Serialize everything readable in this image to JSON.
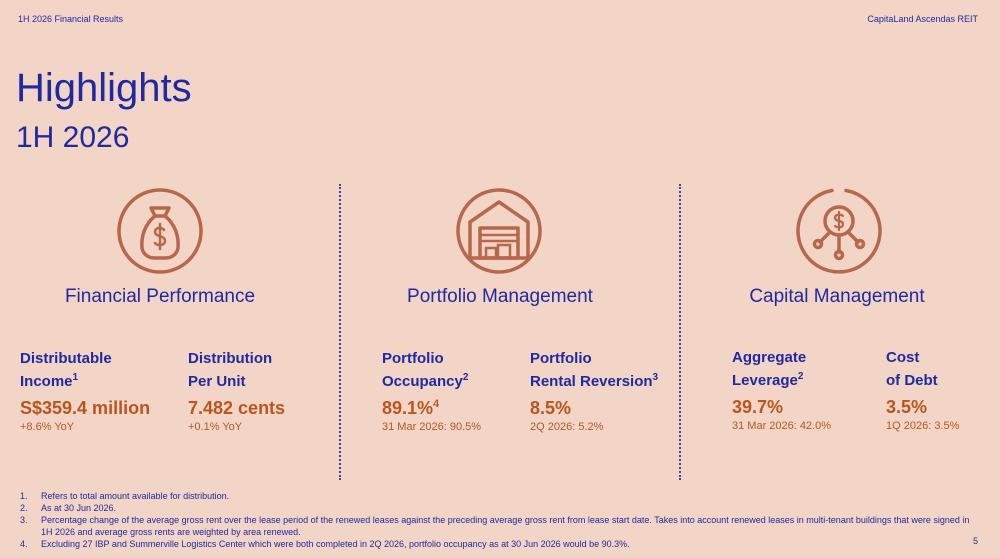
{
  "header": {
    "left": "1H 2026 Financial Results",
    "right": "CapitaLand Ascendas REIT"
  },
  "title": "Highlights",
  "subtitle": "1H 2026",
  "accent_colors": {
    "title": "#1f2aa0",
    "value": "#b8561e",
    "icon": "#b8674a",
    "background": "#f2d5c6"
  },
  "sections": [
    {
      "icon": "money-bag-icon",
      "title": "Financial Performance",
      "metrics": [
        {
          "label_line1": "Distributable",
          "label_line2": "Income",
          "sup": "1",
          "value": "S$359.4 million",
          "value_sup": "",
          "note": "+8.6% YoY"
        },
        {
          "label_line1": "Distribution",
          "label_line2": "Per Unit",
          "sup": "",
          "value": "7.482 cents",
          "value_sup": "",
          "note": "+0.1% YoY"
        }
      ]
    },
    {
      "icon": "warehouse-icon",
      "title": "Portfolio Management",
      "metrics": [
        {
          "label_line1": "Portfolio",
          "label_line2": "Occupancy",
          "sup": "2",
          "value": "89.1%",
          "value_sup": "4",
          "note": "31 Mar 2026: 90.5%"
        },
        {
          "label_line1": "Portfolio",
          "label_line2": "Rental Reversion",
          "sup": "3",
          "value": "8.5%",
          "value_sup": "",
          "note": "2Q 2026: 5.2%"
        }
      ]
    },
    {
      "icon": "capital-network-icon",
      "title": "Capital Management",
      "metrics": [
        {
          "label_line1": "Aggregate",
          "label_line2": "Leverage",
          "sup": "2",
          "value": "39.7%",
          "value_sup": "",
          "note": "31 Mar 2026: 42.0%"
        },
        {
          "label_line1": "Cost",
          "label_line2": "of Debt",
          "sup": "",
          "value": "3.5%",
          "value_sup": "",
          "note": "1Q 2026: 3.5%"
        }
      ]
    }
  ],
  "footnotes": [
    {
      "num": "1.",
      "text": "Refers to total amount available for distribution."
    },
    {
      "num": "2.",
      "text": "As at 30 Jun 2026."
    },
    {
      "num": "3.",
      "text": "Percentage change of the average gross rent over the lease period of the renewed leases against the preceding average gross rent from lease start date. Takes into account renewed leases in multi-tenant buildings that were signed in 1H 2026 and average gross rents are weighted by area renewed."
    },
    {
      "num": "4.",
      "text": "Excluding 27 IBP and Summerville Logistics Center which were both completed in 2Q 2026, portfolio occupancy as at 30 Jun 2026 would be 90.3%."
    }
  ],
  "page_number": "5"
}
